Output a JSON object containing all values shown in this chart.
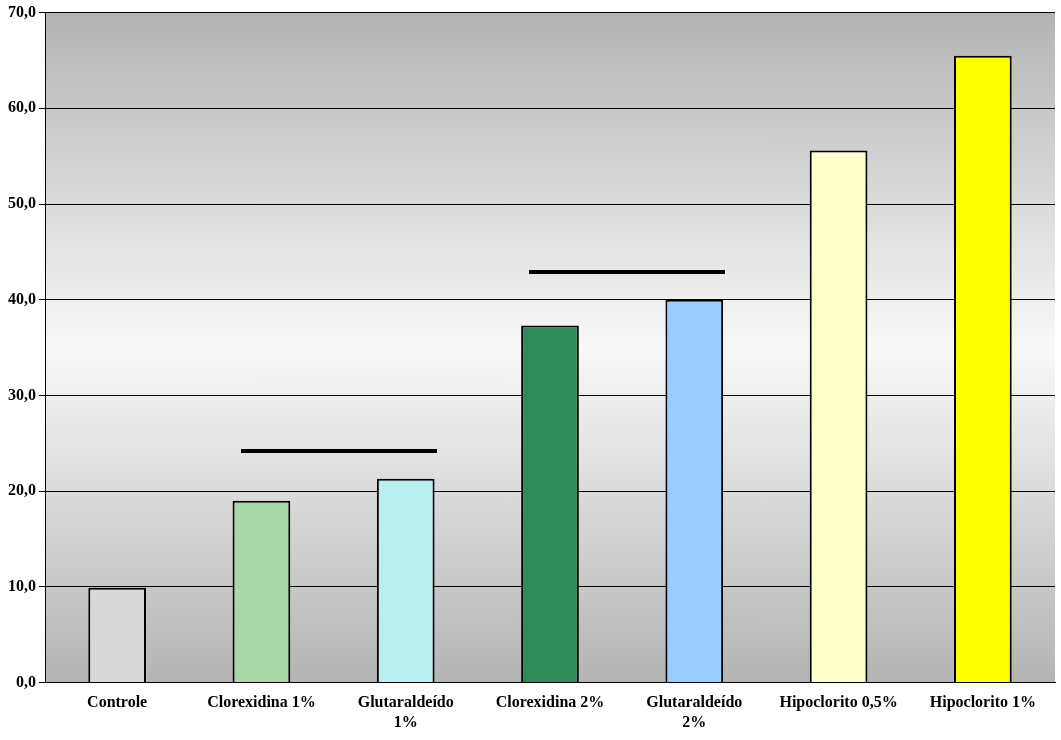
{
  "chart_data": {
    "type": "bar",
    "categories": [
      "Controle",
      "Clorexidina 1%",
      "Glutaraldeído 1%",
      "Clorexidina 2%",
      "Glutaraldeído 2%",
      "Hipoclorito 0,5%",
      "Hipoclorito 1%"
    ],
    "values": [
      9.9,
      19.0,
      21.3,
      37.3,
      40.0,
      55.6,
      65.5
    ],
    "colors": [
      "#d9d9d9",
      "#a8d8a8",
      "#b8f0f0",
      "#2e8b57",
      "#99ccff",
      "#ffffcc",
      "#ffff00"
    ],
    "ylim": [
      0,
      70
    ],
    "yticks": [
      {
        "value": 0,
        "label": "0,0"
      },
      {
        "value": 10,
        "label": "10,0"
      },
      {
        "value": 20,
        "label": "20,0"
      },
      {
        "value": 30,
        "label": "30,0"
      },
      {
        "value": 40,
        "label": "40,0"
      },
      {
        "value": 50,
        "label": "50,0"
      },
      {
        "value": 60,
        "label": "60,0"
      },
      {
        "value": 70,
        "label": "70,0"
      }
    ],
    "grid": "y",
    "legend": false
  }
}
